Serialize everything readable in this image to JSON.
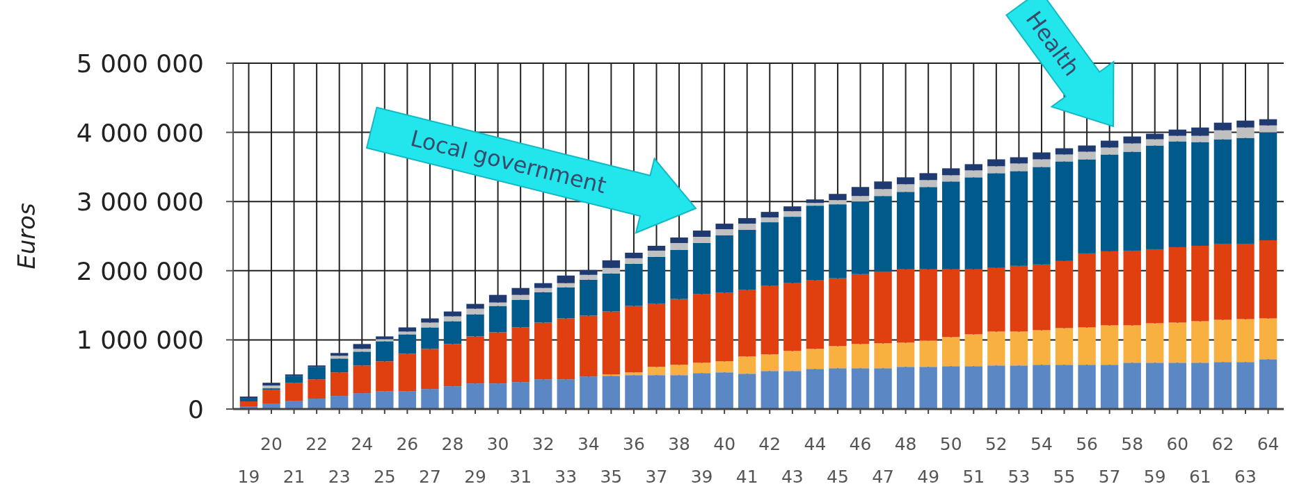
{
  "chart_data": {
    "type": "bar",
    "stacked": true,
    "ylabel": "Euros",
    "grid": true,
    "categories": [
      "19",
      "20",
      "21",
      "22",
      "23",
      "24",
      "25",
      "26",
      "27",
      "28",
      "29",
      "30",
      "31",
      "32",
      "33",
      "34",
      "35",
      "36",
      "37",
      "38",
      "39",
      "40",
      "41",
      "42",
      "43",
      "44",
      "45",
      "46",
      "47",
      "48",
      "49",
      "50",
      "51",
      "52",
      "53",
      "54",
      "55",
      "56",
      "57",
      "58",
      "59",
      "60",
      "61",
      "62",
      "63",
      "64"
    ],
    "ylim": [
      0,
      5000000
    ],
    "yticks": [
      0,
      {
        "value": 1000000,
        "label": "1 000 000"
      },
      {
        "value": 2000000,
        "label": "2 000 000"
      },
      {
        "value": 3000000,
        "label": "3 000 000"
      },
      {
        "value": 4000000,
        "label": "4 000 000"
      },
      {
        "value": 5000000,
        "label": "5 000 000"
      }
    ],
    "series": [
      {
        "color": "#5b87c5",
        "values": [
          40000,
          80000,
          120000,
          150000,
          190000,
          230000,
          260000,
          260000,
          290000,
          330000,
          370000,
          370000,
          390000,
          430000,
          430000,
          470000,
          480000,
          490000,
          490000,
          490000,
          520000,
          530000,
          510000,
          550000,
          550000,
          580000,
          590000,
          590000,
          590000,
          610000,
          610000,
          620000,
          620000,
          630000,
          630000,
          640000,
          640000,
          640000,
          640000,
          670000,
          670000,
          670000,
          670000,
          680000,
          680000,
          720000
        ]
      },
      {
        "color": "#f8b040",
        "values": [
          0,
          0,
          0,
          0,
          0,
          0,
          0,
          0,
          0,
          0,
          0,
          0,
          0,
          0,
          0,
          0,
          20000,
          40000,
          120000,
          150000,
          150000,
          160000,
          250000,
          240000,
          290000,
          290000,
          320000,
          350000,
          360000,
          350000,
          380000,
          420000,
          460000,
          490000,
          490000,
          500000,
          530000,
          540000,
          570000,
          540000,
          570000,
          580000,
          600000,
          610000,
          620000,
          590000
        ]
      },
      {
        "color": "#e04010",
        "values": [
          70000,
          200000,
          260000,
          280000,
          340000,
          400000,
          430000,
          540000,
          580000,
          610000,
          680000,
          740000,
          790000,
          820000,
          880000,
          880000,
          910000,
          960000,
          910000,
          950000,
          990000,
          990000,
          960000,
          990000,
          980000,
          990000,
          980000,
          1010000,
          1040000,
          1060000,
          1030000,
          980000,
          940000,
          920000,
          950000,
          950000,
          970000,
          1070000,
          1070000,
          1080000,
          1070000,
          1090000,
          1090000,
          1100000,
          1090000,
          1130000
        ]
      },
      {
        "color": "#005a8c",
        "values": [
          50000,
          20000,
          100000,
          180000,
          200000,
          200000,
          290000,
          280000,
          310000,
          330000,
          320000,
          380000,
          400000,
          440000,
          450000,
          520000,
          550000,
          610000,
          680000,
          710000,
          740000,
          830000,
          870000,
          920000,
          960000,
          1080000,
          1070000,
          1050000,
          1090000,
          1120000,
          1190000,
          1270000,
          1330000,
          1370000,
          1370000,
          1410000,
          1440000,
          1360000,
          1400000,
          1430000,
          1500000,
          1530000,
          1500000,
          1510000,
          1530000,
          1560000
        ]
      },
      {
        "color": "#c0c0c0",
        "values": [
          null,
          40000,
          null,
          null,
          40000,
          40000,
          30000,
          40000,
          70000,
          70000,
          80000,
          50000,
          70000,
          60000,
          60000,
          70000,
          80000,
          80000,
          90000,
          100000,
          90000,
          90000,
          90000,
          70000,
          80000,
          40000,
          60000,
          80000,
          100000,
          110000,
          100000,
          90000,
          100000,
          100000,
          110000,
          110000,
          100000,
          110000,
          100000,
          120000,
          90000,
          80000,
          90000,
          130000,
          150000,
          100000
        ]
      },
      {
        "color": "#1f3a70",
        "values": [
          20000,
          40000,
          20000,
          20000,
          40000,
          70000,
          40000,
          60000,
          60000,
          70000,
          70000,
          110000,
          100000,
          70000,
          110000,
          70000,
          110000,
          80000,
          70000,
          80000,
          90000,
          80000,
          80000,
          80000,
          70000,
          50000,
          90000,
          130000,
          110000,
          100000,
          100000,
          100000,
          90000,
          100000,
          90000,
          100000,
          90000,
          90000,
          100000,
          100000,
          80000,
          90000,
          120000,
          110000,
          100000,
          90000
        ]
      }
    ],
    "annotations": [
      "Health",
      "Local government"
    ]
  }
}
